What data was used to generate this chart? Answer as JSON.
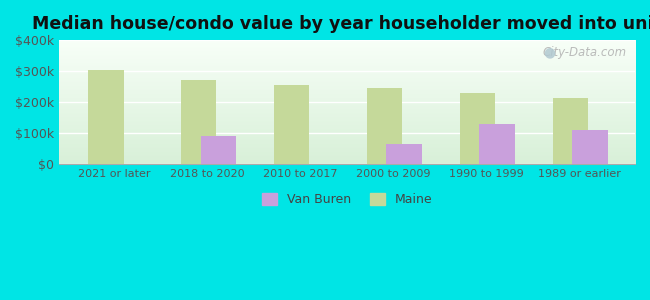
{
  "title": "Median house/condo value by year householder moved into unit",
  "categories": [
    "2021 or later",
    "2018 to 2020",
    "2010 to 2017",
    "2000 to 2009",
    "1990 to 1999",
    "1989 or earlier"
  ],
  "van_buren_values": [
    0,
    90000,
    0,
    65000,
    130000,
    110000
  ],
  "maine_values": [
    305000,
    270000,
    255000,
    245000,
    230000,
    215000
  ],
  "van_buren_color": "#c9a0dc",
  "maine_color": "#c5d99a",
  "background_color": "#00e5e5",
  "ylim": [
    0,
    400000
  ],
  "yticks": [
    0,
    100000,
    200000,
    300000,
    400000
  ],
  "ytick_labels": [
    "$0",
    "$100k",
    "$200k",
    "$300k",
    "$400k"
  ],
  "bar_width": 0.38,
  "bar_gap": 0.02,
  "legend_van_buren": "Van Buren",
  "legend_maine": "Maine",
  "watermark": "City-Data.com"
}
